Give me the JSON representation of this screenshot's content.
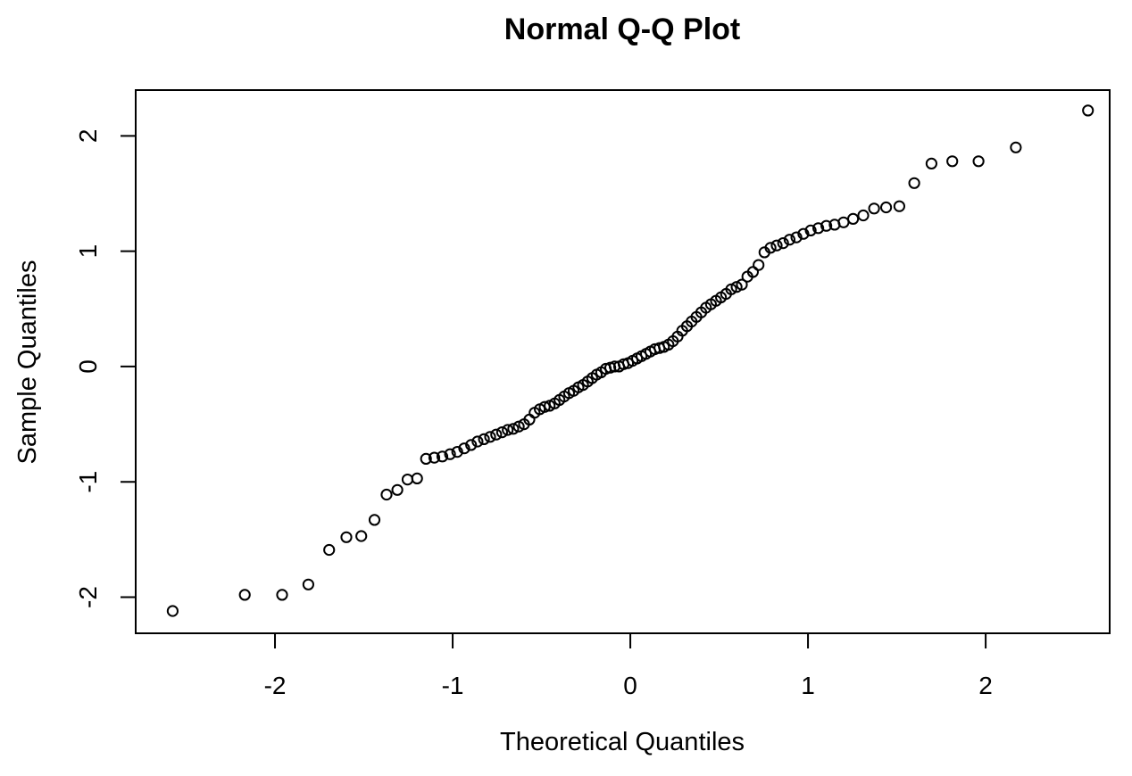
{
  "window": {
    "background": "#ffffff"
  },
  "chart_data": {
    "type": "scatter",
    "title": "Normal Q-Q Plot",
    "xlabel": "Theoretical Quantiles",
    "ylabel": "Sample Quantiles",
    "grid": false,
    "legend": "none",
    "marker": "open-circle",
    "marker_color": "#000000",
    "marker_radius_px": 5.6,
    "marker_stroke_px": 2,
    "axis_color": "#000000",
    "xlim": [
      -2.784,
      2.698
    ],
    "ylim": [
      -2.313,
      2.397
    ],
    "x_ticks": [
      "-2",
      "-1",
      "0",
      "1",
      "2"
    ],
    "x_tick_values": [
      -2,
      -1,
      0,
      1,
      2
    ],
    "y_ticks": [
      "-2",
      "-1",
      "0",
      "1",
      "2"
    ],
    "y_tick_values": [
      -2,
      -1,
      0,
      1,
      2
    ],
    "n_points": 100,
    "x": [
      -2.576,
      -2.17,
      -1.96,
      -1.812,
      -1.695,
      -1.598,
      -1.514,
      -1.44,
      -1.372,
      -1.311,
      -1.254,
      -1.2,
      -1.15,
      -1.103,
      -1.058,
      -1.015,
      -0.974,
      -0.935,
      -0.896,
      -0.86,
      -0.824,
      -0.789,
      -0.755,
      -0.722,
      -0.69,
      -0.659,
      -0.628,
      -0.598,
      -0.568,
      -0.539,
      -0.51,
      -0.482,
      -0.454,
      -0.426,
      -0.399,
      -0.372,
      -0.345,
      -0.319,
      -0.292,
      -0.266,
      -0.24,
      -0.215,
      -0.189,
      -0.164,
      -0.138,
      -0.113,
      -0.088,
      -0.063,
      -0.038,
      -0.013,
      0.013,
      0.038,
      0.063,
      0.088,
      0.113,
      0.138,
      0.164,
      0.189,
      0.215,
      0.24,
      0.266,
      0.292,
      0.319,
      0.345,
      0.372,
      0.399,
      0.426,
      0.454,
      0.482,
      0.51,
      0.539,
      0.568,
      0.598,
      0.628,
      0.659,
      0.69,
      0.722,
      0.755,
      0.789,
      0.824,
      0.86,
      0.896,
      0.935,
      0.974,
      1.015,
      1.058,
      1.103,
      1.15,
      1.2,
      1.254,
      1.311,
      1.372,
      1.44,
      1.514,
      1.598,
      1.695,
      1.812,
      1.96,
      2.17,
      2.576
    ],
    "y": [
      -2.12,
      -1.98,
      -1.98,
      -1.89,
      -1.59,
      -1.48,
      -1.47,
      -1.33,
      -1.11,
      -1.07,
      -0.98,
      -0.97,
      -0.8,
      -0.79,
      -0.78,
      -0.76,
      -0.74,
      -0.71,
      -0.68,
      -0.65,
      -0.63,
      -0.61,
      -0.59,
      -0.57,
      -0.55,
      -0.54,
      -0.52,
      -0.5,
      -0.46,
      -0.4,
      -0.37,
      -0.35,
      -0.34,
      -0.32,
      -0.29,
      -0.26,
      -0.23,
      -0.21,
      -0.18,
      -0.16,
      -0.13,
      -0.1,
      -0.07,
      -0.05,
      -0.02,
      -0.01,
      0.0,
      0.0,
      0.02,
      0.03,
      0.05,
      0.07,
      0.09,
      0.11,
      0.13,
      0.15,
      0.16,
      0.17,
      0.19,
      0.22,
      0.26,
      0.31,
      0.35,
      0.39,
      0.43,
      0.47,
      0.51,
      0.54,
      0.57,
      0.6,
      0.63,
      0.67,
      0.69,
      0.71,
      0.78,
      0.82,
      0.88,
      0.99,
      1.03,
      1.05,
      1.07,
      1.1,
      1.12,
      1.15,
      1.18,
      1.2,
      1.22,
      1.23,
      1.25,
      1.28,
      1.31,
      1.37,
      1.38,
      1.39,
      1.59,
      1.76,
      1.78,
      1.78,
      1.9,
      2.22
    ]
  }
}
